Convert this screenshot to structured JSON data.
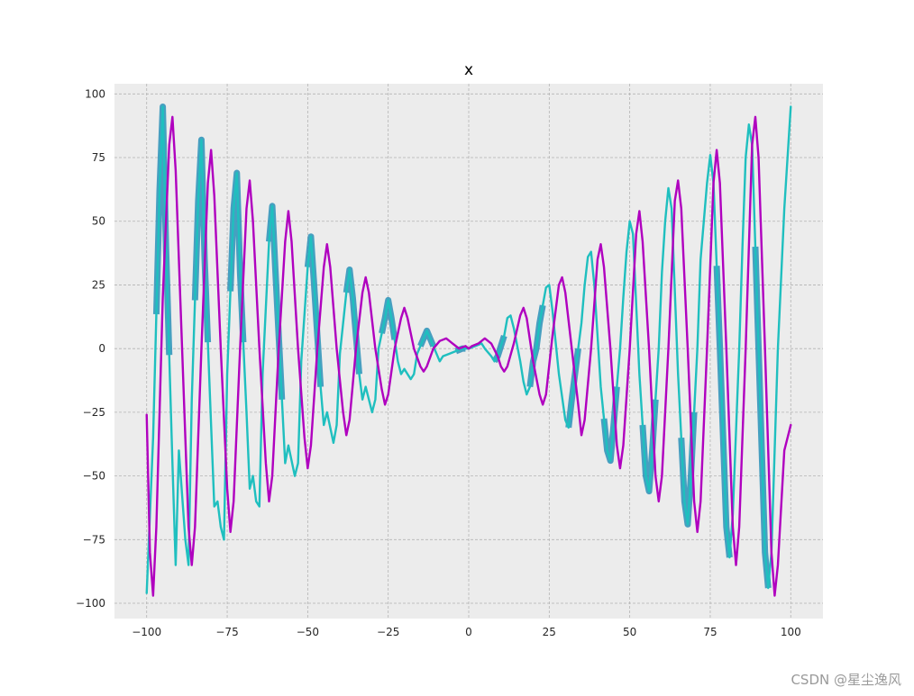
{
  "chart_data": {
    "type": "line",
    "title": "x",
    "xlabel": "",
    "ylabel": "",
    "xlim": [
      -110,
      110
    ],
    "ylim": [
      -106,
      104
    ],
    "xticks": [
      -100,
      -75,
      -50,
      -25,
      0,
      25,
      50,
      75,
      100
    ],
    "xtick_labels": [
      "−100",
      "−75",
      "−50",
      "−25",
      "0",
      "25",
      "50",
      "75",
      "100"
    ],
    "yticks": [
      -100,
      -75,
      -50,
      -25,
      0,
      25,
      50,
      75,
      100
    ],
    "ytick_labels": [
      "−100",
      "−75",
      "−50",
      "−25",
      "0",
      "25",
      "50",
      "75",
      "100"
    ],
    "grid": true,
    "legend": "none",
    "background": "#ececec",
    "gridColor": "#b3b3b3",
    "series": [
      {
        "color": "#1fbfbf",
        "style": "line",
        "sample_step": 1,
        "points": [
          [
            -100,
            -96
          ],
          [
            -98,
            -35
          ],
          [
            -96,
            62
          ],
          [
            -95,
            95
          ],
          [
            -94,
            40
          ],
          [
            -92,
            -45
          ],
          [
            -91,
            -85
          ],
          [
            -90,
            -40
          ],
          [
            -88,
            -75
          ],
          [
            -87,
            -85
          ],
          [
            -86,
            -20
          ],
          [
            -84,
            58
          ],
          [
            -83,
            82
          ],
          [
            -82,
            35
          ],
          [
            -80,
            -30
          ],
          [
            -79,
            -62
          ],
          [
            -78,
            -60
          ],
          [
            -77,
            -70
          ],
          [
            -76,
            -75
          ],
          [
            -75,
            -10
          ],
          [
            -73,
            55
          ],
          [
            -72,
            69
          ],
          [
            -71,
            30
          ],
          [
            -69,
            -25
          ],
          [
            -68,
            -55
          ],
          [
            -67,
            -50
          ],
          [
            -66,
            -60
          ],
          [
            -65,
            -62
          ],
          [
            -64,
            -10
          ],
          [
            -62,
            42
          ],
          [
            -61,
            56
          ],
          [
            -60,
            30
          ],
          [
            -58,
            -20
          ],
          [
            -57,
            -45
          ],
          [
            -56,
            -38
          ],
          [
            -54,
            -50
          ],
          [
            -53,
            -45
          ],
          [
            -52,
            -5
          ],
          [
            -50,
            32
          ],
          [
            -49,
            44
          ],
          [
            -48,
            25
          ],
          [
            -46,
            -15
          ],
          [
            -45,
            -30
          ],
          [
            -44,
            -25
          ],
          [
            -42,
            -37
          ],
          [
            -41,
            -30
          ],
          [
            -40,
            -2
          ],
          [
            -38,
            22
          ],
          [
            -37,
            31
          ],
          [
            -36,
            20
          ],
          [
            -34,
            -10
          ],
          [
            -33,
            -20
          ],
          [
            -32,
            -15
          ],
          [
            -30,
            -25
          ],
          [
            -29,
            -20
          ],
          [
            -28,
            0
          ],
          [
            -26,
            12
          ],
          [
            -25,
            19
          ],
          [
            -24,
            12
          ],
          [
            -22,
            -5
          ],
          [
            -21,
            -10
          ],
          [
            -20,
            -8
          ],
          [
            -18,
            -12
          ],
          [
            -17,
            -10
          ],
          [
            -16,
            -2
          ],
          [
            -14,
            4
          ],
          [
            -13,
            7
          ],
          [
            -12,
            4
          ],
          [
            -10,
            -2
          ],
          [
            -9,
            -5
          ],
          [
            -8,
            -3
          ],
          [
            -6,
            -2
          ],
          [
            -4,
            -1
          ],
          [
            -2,
            0
          ],
          [
            0,
            0
          ],
          [
            2,
            1
          ],
          [
            4,
            2
          ],
          [
            5,
            0
          ],
          [
            7,
            -3
          ],
          [
            8,
            -5
          ],
          [
            9,
            -3
          ],
          [
            11,
            5
          ],
          [
            12,
            12
          ],
          [
            13,
            13
          ],
          [
            14,
            8
          ],
          [
            16,
            -5
          ],
          [
            17,
            -13
          ],
          [
            18,
            -18
          ],
          [
            19,
            -15
          ],
          [
            20,
            -5
          ],
          [
            21,
            0
          ],
          [
            22,
            10
          ],
          [
            24,
            24
          ],
          [
            25,
            25
          ],
          [
            26,
            15
          ],
          [
            28,
            -10
          ],
          [
            30,
            -28
          ],
          [
            31,
            -31
          ],
          [
            32,
            -20
          ],
          [
            34,
            0
          ],
          [
            35,
            10
          ],
          [
            36,
            25
          ],
          [
            37,
            36
          ],
          [
            38,
            38
          ],
          [
            39,
            25
          ],
          [
            41,
            -15
          ],
          [
            43,
            -40
          ],
          [
            44,
            -44
          ],
          [
            45,
            -30
          ],
          [
            47,
            0
          ],
          [
            48,
            20
          ],
          [
            49,
            38
          ],
          [
            50,
            50
          ],
          [
            51,
            45
          ],
          [
            53,
            -10
          ],
          [
            55,
            -50
          ],
          [
            56,
            -56
          ],
          [
            57,
            -40
          ],
          [
            59,
            0
          ],
          [
            60,
            30
          ],
          [
            61,
            50
          ],
          [
            62,
            63
          ],
          [
            63,
            55
          ],
          [
            65,
            -10
          ],
          [
            67,
            -60
          ],
          [
            68,
            -69
          ],
          [
            69,
            -50
          ],
          [
            71,
            0
          ],
          [
            72,
            35
          ],
          [
            74,
            65
          ],
          [
            75,
            76
          ],
          [
            76,
            65
          ],
          [
            78,
            0
          ],
          [
            80,
            -70
          ],
          [
            81,
            -82
          ],
          [
            82,
            -65
          ],
          [
            84,
            0
          ],
          [
            85,
            40
          ],
          [
            86,
            75
          ],
          [
            87,
            88
          ],
          [
            88,
            80
          ],
          [
            90,
            0
          ],
          [
            92,
            -80
          ],
          [
            93,
            -94
          ],
          [
            94,
            -80
          ],
          [
            96,
            0
          ],
          [
            98,
            55
          ],
          [
            100,
            95
          ]
        ]
      },
      {
        "color": "#b000bf",
        "style": "line",
        "sample_step": 1,
        "points": [
          [
            -100,
            -26
          ],
          [
            -99,
            -80
          ],
          [
            -98,
            -97
          ],
          [
            -97,
            -70
          ],
          [
            -95,
            20
          ],
          [
            -93,
            80
          ],
          [
            -92,
            91
          ],
          [
            -91,
            70
          ],
          [
            -89,
            0
          ],
          [
            -87,
            -70
          ],
          [
            -86,
            -85
          ],
          [
            -85,
            -70
          ],
          [
            -83,
            0
          ],
          [
            -81,
            65
          ],
          [
            -80,
            78
          ],
          [
            -79,
            60
          ],
          [
            -77,
            0
          ],
          [
            -75,
            -55
          ],
          [
            -74,
            -72
          ],
          [
            -73,
            -60
          ],
          [
            -71,
            0
          ],
          [
            -69,
            55
          ],
          [
            -68,
            66
          ],
          [
            -67,
            50
          ],
          [
            -65,
            0
          ],
          [
            -63,
            -45
          ],
          [
            -62,
            -60
          ],
          [
            -61,
            -50
          ],
          [
            -59,
            0
          ],
          [
            -57,
            42
          ],
          [
            -56,
            54
          ],
          [
            -55,
            42
          ],
          [
            -53,
            0
          ],
          [
            -51,
            -35
          ],
          [
            -50,
            -47
          ],
          [
            -49,
            -38
          ],
          [
            -47,
            0
          ],
          [
            -45,
            32
          ],
          [
            -44,
            41
          ],
          [
            -43,
            32
          ],
          [
            -41,
            0
          ],
          [
            -39,
            -25
          ],
          [
            -38,
            -34
          ],
          [
            -37,
            -28
          ],
          [
            -35,
            0
          ],
          [
            -33,
            22
          ],
          [
            -32,
            28
          ],
          [
            -31,
            22
          ],
          [
            -29,
            0
          ],
          [
            -27,
            -16
          ],
          [
            -26,
            -22
          ],
          [
            -25,
            -18
          ],
          [
            -23,
            0
          ],
          [
            -21,
            12
          ],
          [
            -20,
            16
          ],
          [
            -19,
            12
          ],
          [
            -17,
            0
          ],
          [
            -15,
            -7
          ],
          [
            -14,
            -9
          ],
          [
            -13,
            -7
          ],
          [
            -11,
            0
          ],
          [
            -9,
            3
          ],
          [
            -7,
            4
          ],
          [
            -5,
            2
          ],
          [
            -3,
            0
          ],
          [
            -1,
            1
          ],
          [
            0,
            0
          ],
          [
            1,
            1
          ],
          [
            3,
            2
          ],
          [
            5,
            4
          ],
          [
            7,
            2
          ],
          [
            9,
            -3
          ],
          [
            10,
            -7
          ],
          [
            11,
            -9
          ],
          [
            12,
            -7
          ],
          [
            14,
            2
          ],
          [
            16,
            13
          ],
          [
            17,
            16
          ],
          [
            18,
            12
          ],
          [
            20,
            -5
          ],
          [
            22,
            -18
          ],
          [
            23,
            -22
          ],
          [
            24,
            -18
          ],
          [
            26,
            5
          ],
          [
            28,
            25
          ],
          [
            29,
            28
          ],
          [
            30,
            22
          ],
          [
            32,
            0
          ],
          [
            34,
            -22
          ],
          [
            35,
            -34
          ],
          [
            36,
            -28
          ],
          [
            38,
            0
          ],
          [
            40,
            35
          ],
          [
            41,
            41
          ],
          [
            42,
            32
          ],
          [
            44,
            0
          ],
          [
            46,
            -38
          ],
          [
            47,
            -47
          ],
          [
            48,
            -38
          ],
          [
            50,
            0
          ],
          [
            52,
            45
          ],
          [
            53,
            54
          ],
          [
            54,
            42
          ],
          [
            56,
            0
          ],
          [
            58,
            -50
          ],
          [
            59,
            -60
          ],
          [
            60,
            -50
          ],
          [
            62,
            0
          ],
          [
            64,
            58
          ],
          [
            65,
            66
          ],
          [
            66,
            55
          ],
          [
            68,
            0
          ],
          [
            70,
            -60
          ],
          [
            71,
            -72
          ],
          [
            72,
            -60
          ],
          [
            74,
            0
          ],
          [
            76,
            65
          ],
          [
            77,
            78
          ],
          [
            78,
            65
          ],
          [
            80,
            0
          ],
          [
            82,
            -70
          ],
          [
            83,
            -85
          ],
          [
            84,
            -70
          ],
          [
            86,
            0
          ],
          [
            88,
            80
          ],
          [
            89,
            91
          ],
          [
            90,
            75
          ],
          [
            92,
            0
          ],
          [
            94,
            -80
          ],
          [
            95,
            -97
          ],
          [
            96,
            -85
          ],
          [
            98,
            -40
          ],
          [
            100,
            -30
          ]
        ]
      }
    ],
    "band": {
      "color": "#2a92b8",
      "description_free": true,
      "ranges": [
        [
          -97,
          -93
        ],
        [
          -85,
          -81
        ],
        [
          -74,
          -70
        ],
        [
          -62,
          -58
        ],
        [
          -50,
          -46
        ],
        [
          -38,
          -34
        ],
        [
          -27,
          -23
        ],
        [
          -15,
          -11
        ],
        [
          -4,
          -1
        ],
        [
          8,
          11
        ],
        [
          19,
          23
        ],
        [
          31,
          34
        ],
        [
          42,
          46
        ],
        [
          54,
          58
        ],
        [
          66,
          70
        ],
        [
          77,
          81
        ],
        [
          89,
          93
        ]
      ]
    }
  },
  "watermark": "CSDN @星尘逸风"
}
